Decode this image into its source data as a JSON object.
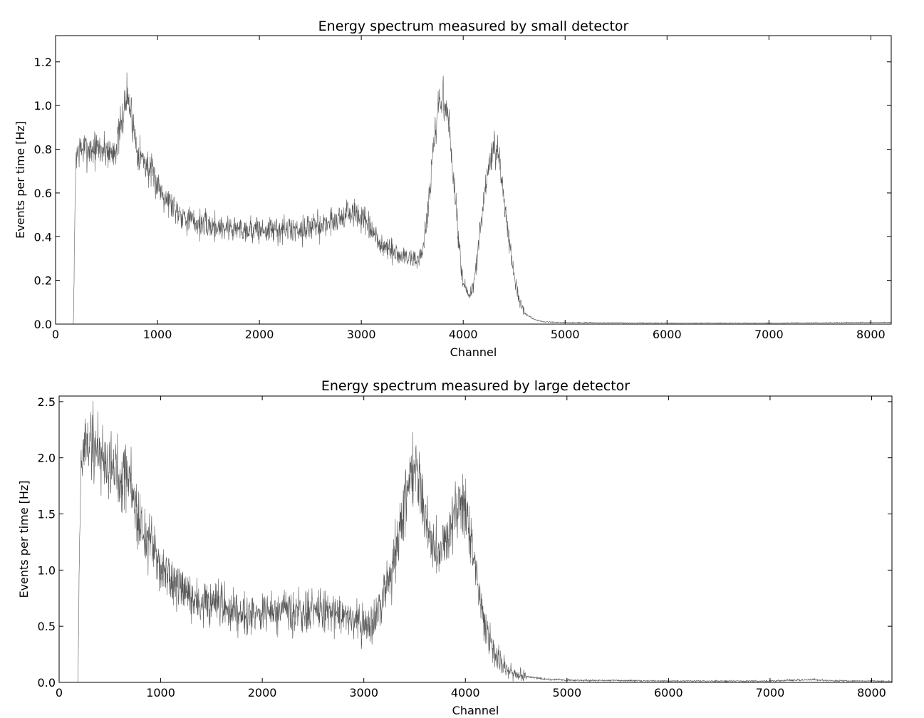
{
  "chart_data": [
    {
      "type": "line",
      "title": "Energy spectrum measured by small detector",
      "xlabel": "Channel",
      "ylabel": "Events per time [Hz]",
      "xlim": [
        0,
        8200
      ],
      "ylim": [
        0,
        1.32
      ],
      "xticks": [
        0,
        1000,
        2000,
        3000,
        4000,
        5000,
        6000,
        7000,
        8000
      ],
      "yticks": [
        0.0,
        0.2,
        0.4,
        0.6,
        0.8,
        1.0,
        1.2
      ],
      "ytick_labels": [
        "0.0",
        "0.2",
        "0.4",
        "0.6",
        "0.8",
        "1.0",
        "1.2"
      ],
      "grid": false,
      "noise_level": 0.055,
      "series": [
        {
          "x": [
            0,
            175,
            185,
            200,
            250,
            300,
            400,
            500,
            550,
            600,
            650,
            700,
            750,
            800,
            900,
            1000,
            1100,
            1200,
            1300,
            1400,
            1500,
            1700,
            2000,
            2300,
            2600,
            2800,
            2900,
            3000,
            3100,
            3200,
            3300,
            3400,
            3500,
            3550,
            3600,
            3650,
            3700,
            3750,
            3800,
            3850,
            3900,
            3950,
            4000,
            4050,
            4100,
            4150,
            4200,
            4250,
            4300,
            4350,
            4400,
            4450,
            4500,
            4550,
            4600,
            4700,
            4800,
            5000,
            6000,
            7000,
            8200
          ],
          "y": [
            0,
            0,
            0.35,
            0.78,
            0.8,
            0.8,
            0.8,
            0.8,
            0.78,
            0.82,
            0.92,
            1.05,
            0.95,
            0.8,
            0.72,
            0.64,
            0.57,
            0.52,
            0.48,
            0.46,
            0.45,
            0.44,
            0.43,
            0.43,
            0.45,
            0.49,
            0.51,
            0.49,
            0.42,
            0.36,
            0.33,
            0.31,
            0.3,
            0.29,
            0.33,
            0.5,
            0.75,
            0.97,
            1.04,
            0.95,
            0.7,
            0.4,
            0.2,
            0.12,
            0.17,
            0.35,
            0.55,
            0.72,
            0.8,
            0.75,
            0.58,
            0.4,
            0.22,
            0.1,
            0.05,
            0.02,
            0.01,
            0.007,
            0.005,
            0.005,
            0.008
          ]
        }
      ]
    },
    {
      "type": "line",
      "title": "Energy spectrum measured by large detector",
      "xlabel": "Channel",
      "ylabel": "Events per time [Hz]",
      "xlim": [
        0,
        8200
      ],
      "ylim": [
        0,
        2.55
      ],
      "xticks": [
        0,
        1000,
        2000,
        3000,
        4000,
        5000,
        6000,
        7000,
        8000
      ],
      "yticks": [
        0.0,
        0.5,
        1.0,
        1.5,
        2.0,
        2.5
      ],
      "ytick_labels": [
        "0.0",
        "0.5",
        "1.0",
        "1.5",
        "2.0",
        "2.5"
      ],
      "grid": false,
      "noise_level": 0.1,
      "series": [
        {
          "x": [
            0,
            185,
            195,
            210,
            250,
            300,
            400,
            500,
            600,
            650,
            700,
            750,
            800,
            900,
            1000,
            1100,
            1200,
            1300,
            1400,
            1500,
            1700,
            2000,
            2300,
            2600,
            2800,
            2900,
            3000,
            3100,
            3200,
            3300,
            3400,
            3450,
            3500,
            3550,
            3600,
            3650,
            3700,
            3750,
            3800,
            3850,
            3900,
            3950,
            4000,
            4050,
            4100,
            4150,
            4200,
            4300,
            4400,
            4500,
            4600,
            4800,
            5000,
            6000,
            7000,
            7400,
            7600,
            8200
          ],
          "y": [
            0,
            0,
            0.8,
            1.8,
            2.12,
            2.15,
            2.05,
            1.92,
            1.85,
            1.9,
            1.8,
            1.55,
            1.4,
            1.22,
            1.05,
            0.9,
            0.8,
            0.74,
            0.7,
            0.68,
            0.65,
            0.62,
            0.61,
            0.63,
            0.62,
            0.58,
            0.5,
            0.52,
            0.75,
            1.15,
            1.6,
            1.85,
            1.92,
            1.8,
            1.55,
            1.35,
            1.18,
            1.15,
            1.25,
            1.42,
            1.55,
            1.6,
            1.5,
            1.3,
            1.0,
            0.7,
            0.5,
            0.25,
            0.12,
            0.07,
            0.05,
            0.03,
            0.02,
            0.012,
            0.012,
            0.025,
            0.015,
            0.01
          ]
        }
      ]
    }
  ]
}
